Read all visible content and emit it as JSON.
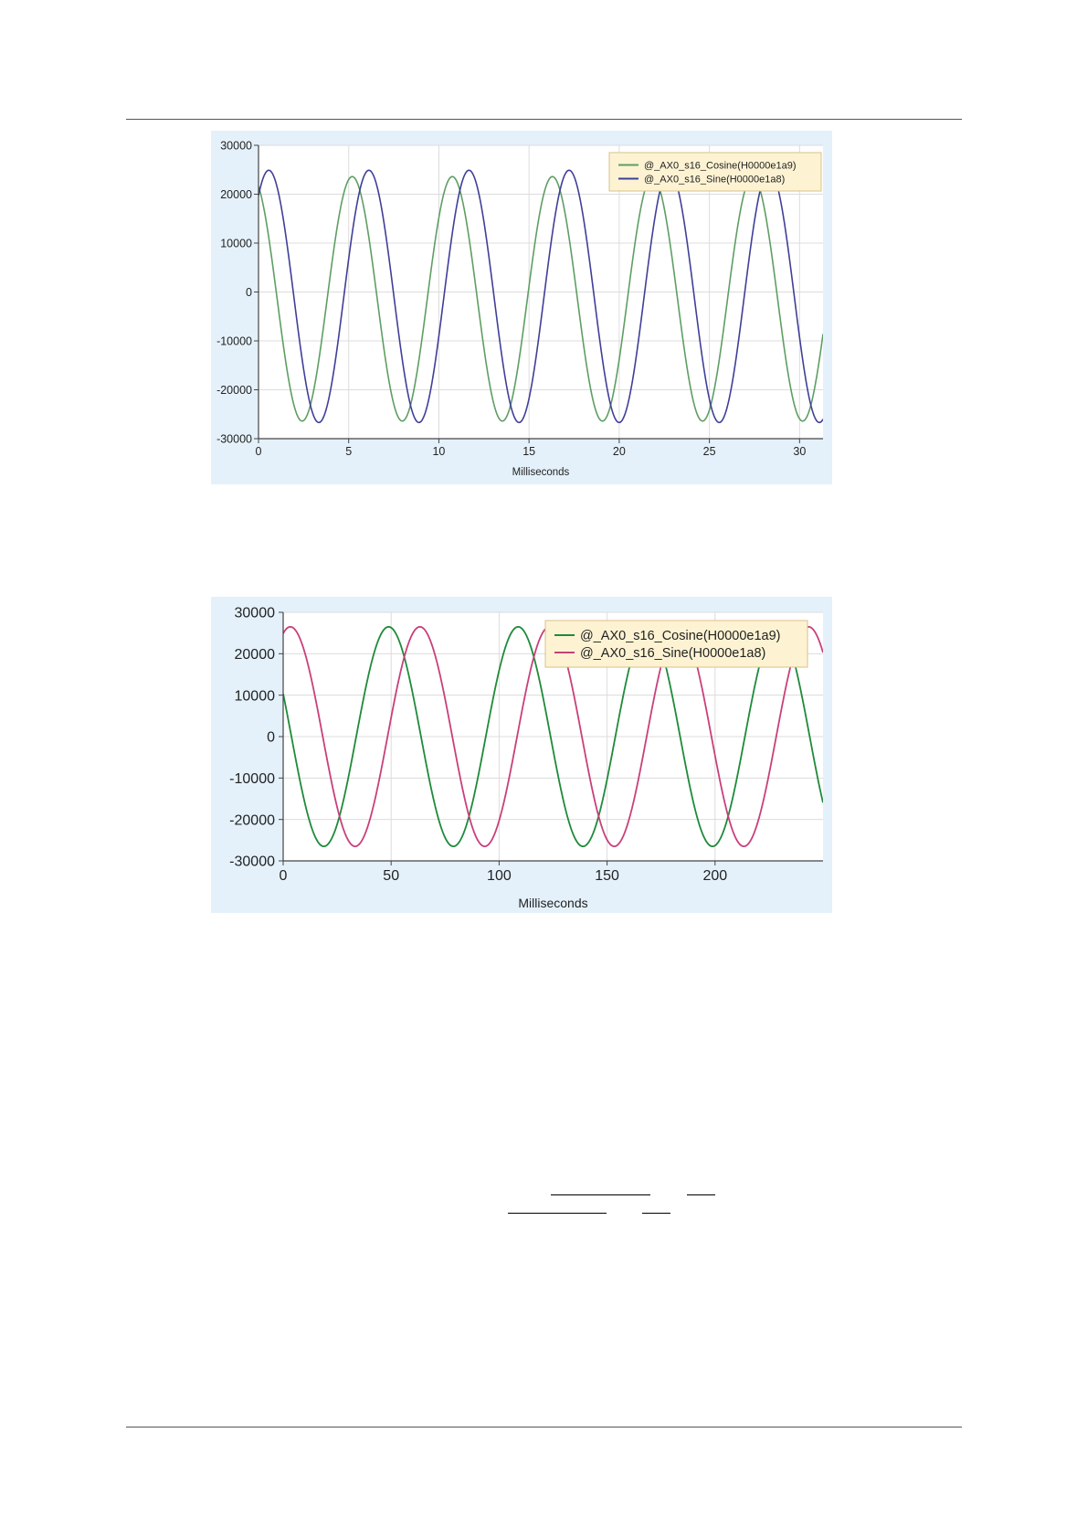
{
  "colors": {
    "panel_background": "#e4f1fb",
    "plot_background": "#ffffff",
    "gridline": "#dcdcdc",
    "legend_background": "#fdf3d3",
    "legend_border": "#d9c28a"
  },
  "chart_data": [
    {
      "type": "line",
      "xlabel": "Milliseconds",
      "ylabel": "",
      "xlim": [
        0,
        31.3
      ],
      "ylim": [
        -30000,
        30000
      ],
      "xticks": [
        0,
        5,
        10,
        15,
        20,
        25,
        30
      ],
      "yticks": [
        30000,
        20000,
        10000,
        0,
        -10000,
        -20000,
        -30000
      ],
      "grid": true,
      "legend_position": "top-right",
      "series": [
        {
          "name": "@_AX0_s16_Cosine(H0000e1a9)",
          "color": "#5e9e63",
          "amplitude": 25000,
          "offset": -1400,
          "period_ms": 5.55,
          "phase_deg": 113,
          "sample_step": 0.05
        },
        {
          "name": "@_AX0_s16_Sine(H0000e1a8)",
          "color": "#3f3f98",
          "amplitude": 25800,
          "offset": -900,
          "period_ms": 5.55,
          "phase_deg": 53,
          "sample_step": 0.05
        }
      ]
    },
    {
      "type": "line",
      "xlabel": "Milliseconds",
      "ylabel": "",
      "xlim": [
        0,
        250
      ],
      "ylim": [
        -30000,
        30000
      ],
      "xticks": [
        0,
        50,
        100,
        150,
        200
      ],
      "yticks": [
        30000,
        20000,
        10000,
        0,
        -10000,
        -20000,
        -30000
      ],
      "grid": true,
      "legend_position": "top-right",
      "series": [
        {
          "name": "@_AX0_s16_Cosine(H0000e1a9)",
          "color": "#1f8a3a",
          "amplitude": 26500,
          "offset": 0,
          "period_ms": 60,
          "phase_deg": 157,
          "sample_step": 0.5
        },
        {
          "name": "@_AX0_s16_Sine(H0000e1a8)",
          "color": "#c8407a",
          "amplitude": 26500,
          "offset": 0,
          "period_ms": 60,
          "phase_deg": 70,
          "sample_step": 0.5
        }
      ]
    }
  ]
}
